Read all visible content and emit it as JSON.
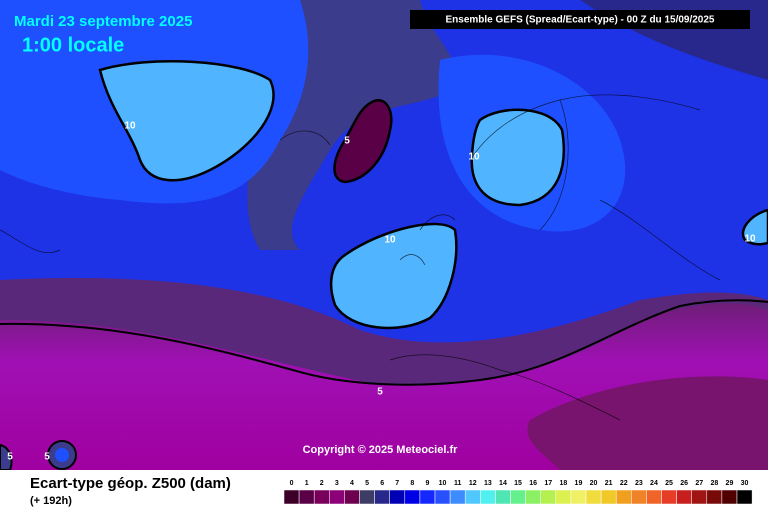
{
  "header": {
    "date": "Mardi 23 septembre 2025",
    "time": "1:00 locale",
    "info": "Ensemble GEFS  (Spread/Ecart-type) - 00 Z du 15/09/2025"
  },
  "copyright": "Copyright © 2025 Meteociel.fr",
  "footer": {
    "title": "Ecart-type géop. Z500 (dam)",
    "subtitle": "(+ 192h)"
  },
  "scale": {
    "labels": [
      "0",
      "1",
      "2",
      "3",
      "4",
      "5",
      "6",
      "7",
      "8",
      "9",
      "10",
      "11",
      "12",
      "13",
      "14",
      "15",
      "16",
      "17",
      "18",
      "19",
      "20",
      "21",
      "22",
      "23",
      "24",
      "25",
      "26",
      "27",
      "28",
      "29",
      "30"
    ],
    "colors": [
      "#3c0028",
      "#5a0046",
      "#78005a",
      "#8c0078",
      "#6e0050",
      "#3c3c64",
      "#28288c",
      "#0000b4",
      "#0000e6",
      "#1428ff",
      "#2850ff",
      "#3c8cff",
      "#50c8ff",
      "#50f0f0",
      "#50e6b4",
      "#64f08c",
      "#8cf064",
      "#b4f050",
      "#dcf050",
      "#f0f064",
      "#f0dc3c",
      "#f0c828",
      "#f0a01e",
      "#f08228",
      "#f06428",
      "#e63c28",
      "#c81e1e",
      "#a01414",
      "#780a0a",
      "#500000",
      "#000000"
    ]
  },
  "contour_labels": [
    "10",
    "10",
    "10",
    "10",
    "5",
    "5",
    "5",
    "5"
  ]
}
